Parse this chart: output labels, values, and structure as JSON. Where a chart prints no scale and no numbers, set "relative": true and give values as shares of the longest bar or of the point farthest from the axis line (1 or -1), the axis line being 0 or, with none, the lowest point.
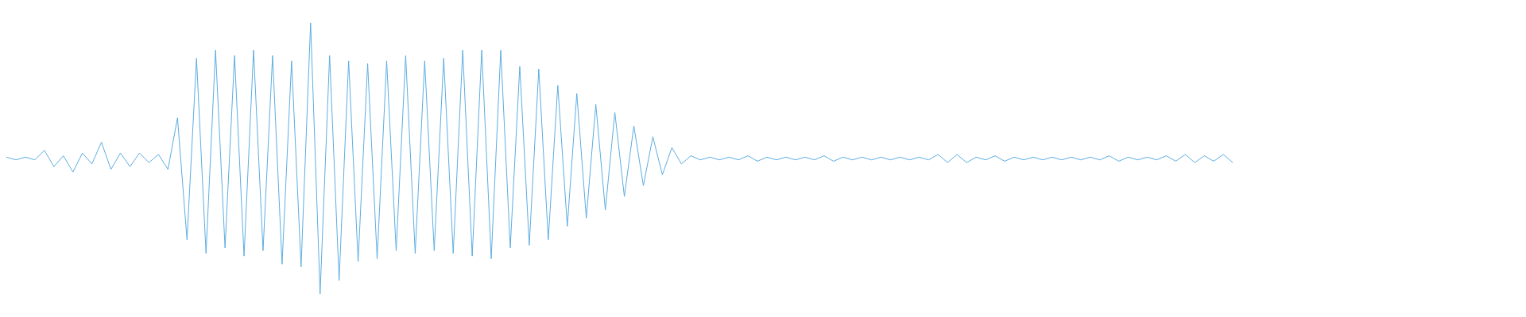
{
  "chart_data": {
    "type": "line",
    "relative": true,
    "color": "#5dade2",
    "categories": [
      null,
      null,
      null,
      null,
      null,
      null,
      null,
      null,
      null,
      null,
      null,
      null,
      null,
      null,
      null,
      null,
      null,
      null,
      null,
      null,
      null,
      null,
      null,
      null,
      null,
      null,
      null,
      null,
      null,
      null,
      null,
      null,
      null,
      null,
      null,
      null,
      null,
      null,
      null,
      null,
      null,
      null,
      null,
      null,
      null,
      null,
      null,
      null,
      null,
      null,
      null,
      null,
      null,
      null,
      null,
      null,
      null,
      null,
      null,
      null,
      null,
      null,
      null,
      null,
      null,
      null,
      null,
      null,
      null,
      null,
      null,
      null,
      null,
      null,
      null,
      null,
      null,
      null,
      null,
      null,
      null,
      null,
      null,
      null,
      null,
      null,
      null,
      null,
      null,
      null,
      null,
      null,
      null,
      null,
      null,
      null,
      null,
      null,
      null,
      null,
      null,
      null,
      null,
      null,
      null,
      null,
      null,
      null,
      null,
      null,
      null,
      null,
      null,
      null,
      null,
      null,
      null,
      null,
      null,
      null,
      null,
      null,
      null,
      null,
      null,
      null,
      null,
      null,
      null,
      null,
      null,
      null,
      null,
      null,
      null,
      null,
      null,
      null,
      null,
      null,
      null,
      null,
      null,
      null,
      null,
      null,
      null,
      null,
      null,
      null,
      null,
      null,
      null,
      null,
      null,
      null,
      null,
      null,
      null,
      null
    ],
    "values": [
      0.505,
      0.495,
      0.505,
      0.495,
      0.53,
      0.47,
      0.51,
      0.45,
      0.52,
      0.48,
      0.56,
      0.46,
      0.52,
      0.47,
      0.52,
      0.485,
      0.515,
      0.46,
      0.65,
      0.2,
      0.87,
      0.15,
      0.9,
      0.17,
      0.88,
      0.14,
      0.9,
      0.16,
      0.88,
      0.11,
      0.86,
      0.1,
      1,
      0,
      0.88,
      0.05,
      0.86,
      0.12,
      0.85,
      0.13,
      0.86,
      0.16,
      0.88,
      0.15,
      0.86,
      0.16,
      0.87,
      0.15,
      0.9,
      0.14,
      0.9,
      0.13,
      0.9,
      0.17,
      0.84,
      0.18,
      0.83,
      0.2,
      0.77,
      0.25,
      0.74,
      0.28,
      0.7,
      0.31,
      0.67,
      0.36,
      0.62,
      0.4,
      0.58,
      0.44,
      0.54,
      0.48,
      0.51,
      0.495,
      0.505,
      0.495,
      0.505,
      0.495,
      0.51,
      0.49,
      0.505,
      0.495,
      0.505,
      0.495,
      0.505,
      0.495,
      0.51,
      0.49,
      0.505,
      0.495,
      0.505,
      0.495,
      0.505,
      0.495,
      0.505,
      0.495,
      0.505,
      0.495,
      0.515,
      0.485,
      0.515,
      0.485,
      0.505,
      0.495,
      0.51,
      0.49,
      0.505,
      0.495,
      0.505,
      0.495,
      0.505,
      0.495,
      0.505,
      0.495,
      0.505,
      0.495,
      0.51,
      0.49,
      0.505,
      0.495,
      0.505,
      0.495,
      0.51,
      0.49,
      0.515,
      0.485,
      0.51,
      0.49,
      0.515,
      0.485,
      null,
      null,
      null,
      null,
      null,
      null,
      null,
      null,
      null,
      null,
      null,
      null,
      null,
      null,
      null,
      null,
      null,
      null,
      null,
      null,
      null,
      null,
      null,
      null,
      null,
      null,
      null,
      null,
      null,
      null
    ]
  }
}
